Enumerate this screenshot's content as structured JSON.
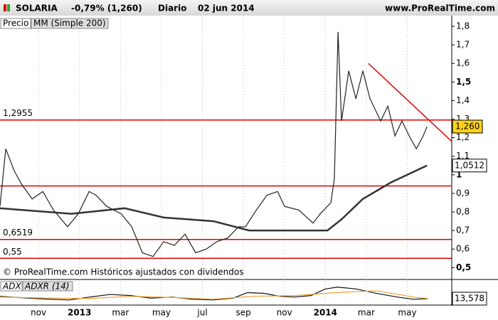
{
  "header": {
    "ticker": "SOLARIA",
    "change": "-0,79% (1,260)",
    "period": "Diario",
    "date": "02 jun 2014",
    "site": "www.ProRealTime.com"
  },
  "chart_data": {
    "type": "line",
    "xlim": [
      -0.88,
      21.17
    ],
    "ylim": [
      0.44,
      1.85
    ],
    "xticks": [
      {
        "value": 1,
        "label": "nov"
      },
      {
        "value": 3,
        "label": "2013"
      },
      {
        "value": 5,
        "label": "mar"
      },
      {
        "value": 7,
        "label": "may"
      },
      {
        "value": 9,
        "label": "jul"
      },
      {
        "value": 11,
        "label": "sep"
      },
      {
        "value": 13,
        "label": "nov"
      },
      {
        "value": 15,
        "label": "2014"
      },
      {
        "value": 17,
        "label": "mar"
      },
      {
        "value": 19,
        "label": "may"
      }
    ],
    "yticks": [
      {
        "value": 1.8,
        "label": "1,8"
      },
      {
        "value": 1.7,
        "label": "1,7"
      },
      {
        "value": 1.6,
        "label": "1,6"
      },
      {
        "value": 1.5,
        "label": "1,5"
      },
      {
        "value": 1.4,
        "label": "1,4"
      },
      {
        "value": 1.3,
        "label": "1,3"
      },
      {
        "value": 1.2,
        "label": "1,2"
      },
      {
        "value": 1.1,
        "label": "1,1"
      },
      1,
      {
        "value": 0.9,
        "label": "0,9"
      },
      {
        "value": 0.8,
        "label": "0,8"
      },
      {
        "value": 0.7,
        "label": "0,7"
      },
      {
        "value": 0.6,
        "label": "0,6"
      },
      {
        "value": 0.5,
        "label": "0,5"
      }
    ],
    "series": [
      {
        "name": "Precio",
        "color": "#222222",
        "x": [
          -0.88,
          -0.6,
          -0.18,
          0.17,
          0.69,
          1.21,
          1.73,
          2.42,
          2.94,
          3.47,
          3.81,
          4.33,
          5.03,
          5.55,
          6.07,
          6.59,
          7.11,
          7.63,
          8.15,
          8.67,
          9.19,
          9.71,
          10.24,
          10.76,
          11.1,
          11.63,
          12.15,
          12.67,
          13.01,
          13.71,
          14.4,
          14.75,
          15.27,
          15.44,
          15.62,
          15.79,
          16.14,
          16.49,
          16.83,
          17.18,
          17.7,
          18.05,
          18.4,
          18.74,
          19.09,
          19.44,
          19.78,
          19.96
        ],
        "values": [
          0.83,
          1.14,
          1.02,
          0.95,
          0.87,
          0.91,
          0.81,
          0.72,
          0.79,
          0.91,
          0.89,
          0.83,
          0.79,
          0.72,
          0.58,
          0.56,
          0.64,
          0.62,
          0.68,
          0.58,
          0.6,
          0.64,
          0.66,
          0.72,
          0.72,
          0.81,
          0.89,
          0.91,
          0.83,
          0.81,
          0.74,
          0.79,
          0.85,
          0.98,
          1.77,
          1.29,
          1.56,
          1.41,
          1.56,
          1.41,
          1.29,
          1.37,
          1.21,
          1.29,
          1.21,
          1.14,
          1.21,
          1.26
        ]
      },
      {
        "name": "MM (Simple 200)",
        "color": "#333333",
        "x": [
          -0.88,
          2.6,
          5.2,
          7.11,
          9.54,
          11.28,
          15.1,
          15.79,
          16.83,
          18.22,
          19.96
        ],
        "values": [
          0.82,
          0.79,
          0.82,
          0.77,
          0.75,
          0.7,
          0.7,
          0.76,
          0.87,
          0.96,
          1.05
        ]
      }
    ],
    "levels": [
      {
        "value": 1.2955,
        "label": "1,2955"
      },
      {
        "value": 0.94
      },
      {
        "value": 0.6519,
        "label": "0,6519"
      },
      {
        "value": 0.55,
        "label": "0,55"
      }
    ],
    "level_color": "#e00000",
    "trendline": {
      "x": [
        17.1,
        21.17
      ],
      "values": [
        1.6,
        1.18
      ],
      "color": "#e00000"
    },
    "price_tag": "1,260",
    "ma_tag": "1,0512",
    "watermark": "© ProRealTime.com  Históricos ajustados con dividendos",
    "indicator": {
      "title": "ADX",
      "subtitle": "ADXR (14)",
      "value_label": "13,578",
      "ylim": [
        0,
        60
      ],
      "series": [
        {
          "name": "ADX",
          "color": "#111111",
          "x": [
            -0.88,
            0.5,
            1.5,
            2.5,
            3.5,
            4.5,
            5.5,
            6.5,
            7.5,
            8.5,
            9.5,
            10.5,
            11.2,
            12,
            12.8,
            13.5,
            14.3,
            15,
            15.6,
            16.5,
            17.5,
            18.5,
            19.3,
            20
          ],
          "values": [
            20,
            15,
            12,
            10,
            18,
            25,
            22,
            15,
            18,
            12,
            10,
            15,
            30,
            28,
            20,
            18,
            22,
            40,
            45,
            40,
            28,
            18,
            12,
            13.578
          ]
        },
        {
          "name": "ADXR",
          "color": "#f0a030",
          "x": [
            -0.88,
            1.5,
            3.5,
            5.5,
            7.5,
            9.5,
            11.5,
            13.5,
            15.5,
            17.5,
            19.3,
            20
          ],
          "values": [
            18,
            15,
            14,
            20,
            17,
            12,
            20,
            22,
            30,
            35,
            18,
            14
          ]
        }
      ]
    }
  }
}
